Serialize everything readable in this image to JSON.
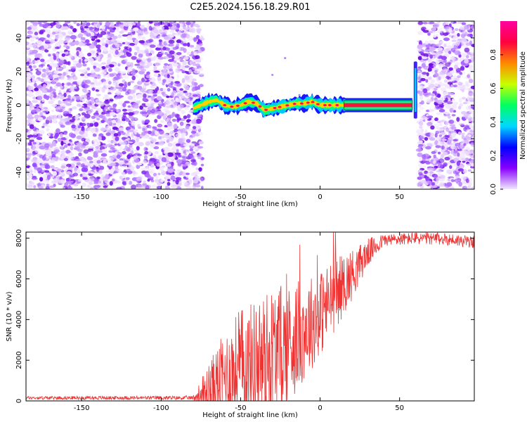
{
  "title": "C2E5.2024.156.18.29.R01",
  "chart_data": [
    {
      "type": "heatmap",
      "xlabel": "Height of straight line (km)",
      "ylabel": "Frequency (Hz)",
      "xlim": [
        -185,
        97
      ],
      "ylim": [
        -50,
        50
      ],
      "xticks": [
        -150,
        -100,
        -50,
        0,
        50
      ],
      "yticks": [
        -40,
        -20,
        0,
        20,
        40
      ],
      "grid": false,
      "noise_regions_km": [
        [
          -185,
          -74
        ],
        [
          62,
          97
        ]
      ],
      "signal_track": [
        {
          "x": -80,
          "y": -2
        },
        {
          "x": -75,
          "y": 0
        },
        {
          "x": -70,
          "y": 2
        },
        {
          "x": -65,
          "y": 3
        },
        {
          "x": -60,
          "y": 0
        },
        {
          "x": -55,
          "y": -1
        },
        {
          "x": -50,
          "y": 0
        },
        {
          "x": -45,
          "y": 2
        },
        {
          "x": -40,
          "y": 1
        },
        {
          "x": -35,
          "y": -3
        },
        {
          "x": -30,
          "y": -2
        },
        {
          "x": -25,
          "y": -1
        },
        {
          "x": -20,
          "y": 0
        },
        {
          "x": -15,
          "y": 1
        },
        {
          "x": -10,
          "y": 1
        },
        {
          "x": -5,
          "y": 2
        },
        {
          "x": 0,
          "y": 0
        },
        {
          "x": 5,
          "y": 0
        },
        {
          "x": 10,
          "y": 0
        },
        {
          "x": 15,
          "y": 0
        },
        {
          "x": 58,
          "y": 0
        }
      ],
      "vertical_feature": {
        "x": 60,
        "y_range": [
          -8,
          26
        ]
      },
      "colorbar": {
        "label": "Normalized spectral amplitude",
        "range": [
          0,
          1
        ],
        "ticks": [
          "0.0",
          "0.2",
          "0.4",
          "0.6",
          "0.8"
        ],
        "colors": [
          "#f0e8ff",
          "#8800ff",
          "#0000ff",
          "#00d8ff",
          "#00ff60",
          "#c8ff00",
          "#ff8800",
          "#ff0040",
          "#ff00a0"
        ]
      }
    },
    {
      "type": "line",
      "xlabel": "Height of straight line (km)",
      "ylabel": "SNR (10 * v/v)",
      "xlim": [
        -185,
        97
      ],
      "ylim": [
        0,
        8300
      ],
      "xticks": [
        -150,
        -100,
        -50,
        0,
        50
      ],
      "yticks": [
        0,
        2000,
        4000,
        6000,
        8000
      ],
      "grid": false,
      "color": "#ee3333",
      "trend": [
        {
          "x": -185,
          "y": 150
        },
        {
          "x": -80,
          "y": 150
        },
        {
          "x": -70,
          "y": 400
        },
        {
          "x": -60,
          "y": 1200
        },
        {
          "x": -50,
          "y": 1600
        },
        {
          "x": -40,
          "y": 1800
        },
        {
          "x": -30,
          "y": 2200
        },
        {
          "x": -20,
          "y": 2800
        },
        {
          "x": -10,
          "y": 3500
        },
        {
          "x": 0,
          "y": 4300
        },
        {
          "x": 10,
          "y": 5300
        },
        {
          "x": 20,
          "y": 6200
        },
        {
          "x": 30,
          "y": 7300
        },
        {
          "x": 40,
          "y": 7900
        },
        {
          "x": 60,
          "y": 8000
        },
        {
          "x": 80,
          "y": 7950
        },
        {
          "x": 97,
          "y": 7800
        }
      ],
      "noise_amplitude": [
        {
          "x": -185,
          "y": 80
        },
        {
          "x": -80,
          "y": 100
        },
        {
          "x": -70,
          "y": 1500
        },
        {
          "x": -50,
          "y": 3000
        },
        {
          "x": -30,
          "y": 3500
        },
        {
          "x": -10,
          "y": 2500
        },
        {
          "x": 10,
          "y": 1800
        },
        {
          "x": 30,
          "y": 700
        },
        {
          "x": 40,
          "y": 300
        },
        {
          "x": 97,
          "y": 300
        }
      ]
    }
  ]
}
